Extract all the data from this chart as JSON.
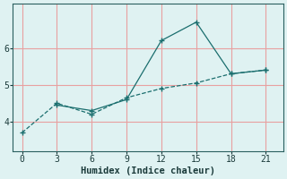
{
  "xlabel": "Humidex (Indice chaleur)",
  "line1_x": [
    0,
    3,
    6,
    9,
    12,
    15,
    18,
    21
  ],
  "line1_y": [
    3.7,
    4.5,
    4.2,
    4.65,
    4.9,
    5.05,
    5.3,
    5.4
  ],
  "line2_x": [
    3,
    6,
    9,
    12,
    15,
    18,
    21
  ],
  "line2_y": [
    4.45,
    4.3,
    4.6,
    6.2,
    6.7,
    5.3,
    5.4
  ],
  "line_color": "#1a6e6e",
  "bg_color": "#dff2f2",
  "grid_color": "#e8a0a0",
  "xticks": [
    0,
    3,
    6,
    9,
    12,
    15,
    18,
    21
  ],
  "yticks": [
    4,
    5,
    6
  ],
  "ylim": [
    3.2,
    7.2
  ],
  "xlim": [
    -0.8,
    22.5
  ]
}
